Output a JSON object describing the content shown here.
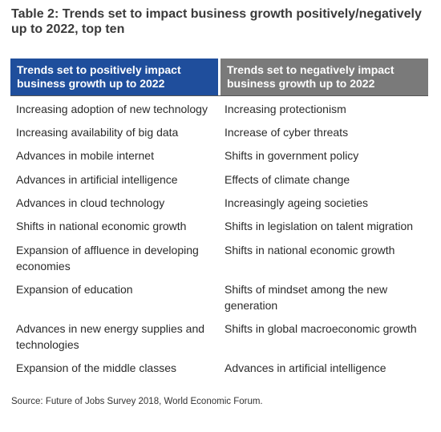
{
  "title": "Table 2: Trends set to impact business growth positively/negatively up to 2022, top ten",
  "headers": {
    "positive": "Trends set to positively impact business growth up to 2022",
    "negative": "Trends set to negatively impact business growth up to 2022"
  },
  "rows": [
    {
      "positive": "Increasing adoption of new technology",
      "negative": "Increasing protectionism"
    },
    {
      "positive": "Increasing availability of big data",
      "negative": "Increase of cyber threats"
    },
    {
      "positive": "Advances in mobile internet",
      "negative": "Shifts in government policy"
    },
    {
      "positive": "Advances in artificial intelligence",
      "negative": "Effects of climate change"
    },
    {
      "positive": "Advances in cloud technology",
      "negative": "Increasingly ageing societies"
    },
    {
      "positive": "Shifts in national economic growth",
      "negative": "Shifts in legislation on talent migration"
    },
    {
      "positive": "Expansion of affluence in developing economies",
      "negative": "Shifts in national economic growth"
    },
    {
      "positive": "Expansion of education",
      "negative": "Shifts of mindset among the new generation"
    },
    {
      "positive": "Advances in new energy supplies and technologies",
      "negative": "Shifts in global macroeconomic growth"
    },
    {
      "positive": "Expansion of the middle classes",
      "negative": "Advances in artificial intelligence"
    }
  ],
  "source": "Source: Future of Jobs Survey 2018, World Economic Forum.",
  "colors": {
    "positive_header": "#1f4e9c",
    "negative_header": "#7a7a7a"
  }
}
